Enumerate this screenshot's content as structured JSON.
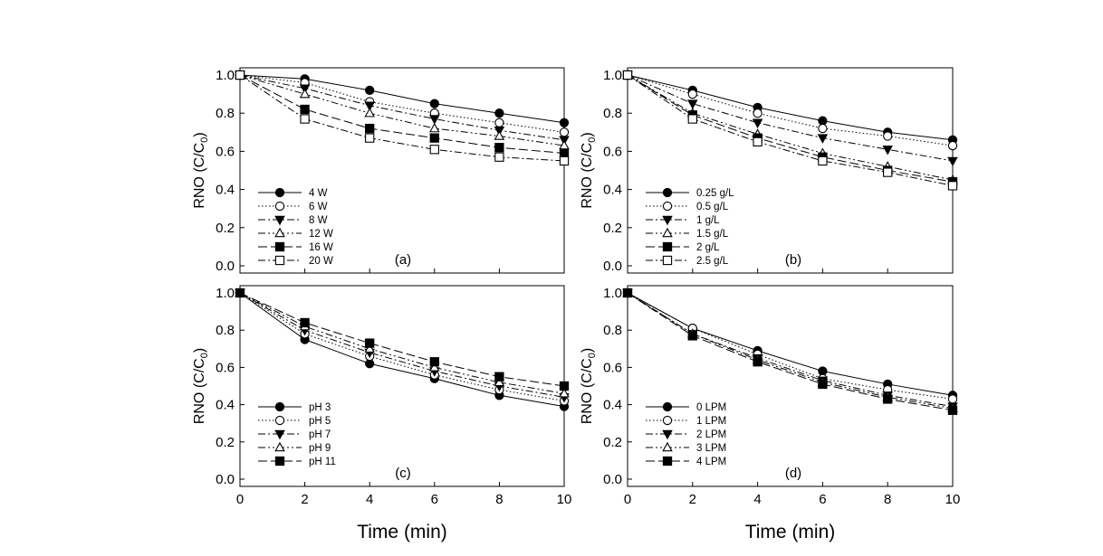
{
  "figure": {
    "xlabel": "Time (min)",
    "ylabel": "RNO (C/C",
    "ylabel_sub": "0",
    "ylabel_close": ")"
  },
  "chart_data": [
    {
      "id": "a",
      "type": "line",
      "panel_label": "(a)",
      "xlim": [
        0,
        10
      ],
      "ylim": [
        0,
        1.0
      ],
      "x": [
        0,
        2,
        4,
        6,
        8,
        10
      ],
      "xticks": [
        0,
        2,
        4,
        6,
        8,
        10
      ],
      "yticks": [
        0.0,
        0.2,
        0.4,
        0.6,
        0.8,
        1.0
      ],
      "legend_position": "lower-left",
      "series": [
        {
          "name": "4 W",
          "marker": "circle-filled",
          "dash": "solid",
          "values": [
            1.0,
            0.98,
            0.92,
            0.85,
            0.8,
            0.75
          ]
        },
        {
          "name": "6 W",
          "marker": "circle-open",
          "dash": "dotted",
          "values": [
            1.0,
            0.96,
            0.86,
            0.8,
            0.75,
            0.7
          ]
        },
        {
          "name": "8 W",
          "marker": "triangle-down-filled",
          "dash": "dashdot",
          "values": [
            1.0,
            0.93,
            0.84,
            0.77,
            0.71,
            0.66
          ]
        },
        {
          "name": "12 W",
          "marker": "triangle-up-open",
          "dash": "dashdotdot",
          "values": [
            1.0,
            0.9,
            0.8,
            0.72,
            0.68,
            0.63
          ]
        },
        {
          "name": "16 W",
          "marker": "square-filled",
          "dash": "longdash",
          "values": [
            1.0,
            0.82,
            0.72,
            0.67,
            0.62,
            0.59
          ]
        },
        {
          "name": "20 W",
          "marker": "square-open",
          "dash": "dashdot",
          "values": [
            1.0,
            0.77,
            0.67,
            0.61,
            0.57,
            0.55
          ]
        }
      ]
    },
    {
      "id": "b",
      "type": "line",
      "panel_label": "(b)",
      "xlim": [
        0,
        10
      ],
      "ylim": [
        0,
        1.0
      ],
      "x": [
        0,
        2,
        4,
        6,
        8,
        10
      ],
      "xticks": [
        0,
        2,
        4,
        6,
        8,
        10
      ],
      "yticks": [
        0.0,
        0.2,
        0.4,
        0.6,
        0.8,
        1.0
      ],
      "legend_position": "lower-left",
      "series": [
        {
          "name": "0.25 g/L",
          "marker": "circle-filled",
          "dash": "solid",
          "values": [
            1.0,
            0.92,
            0.83,
            0.76,
            0.7,
            0.66
          ]
        },
        {
          "name": "0.5 g/L",
          "marker": "circle-open",
          "dash": "dotted",
          "values": [
            1.0,
            0.9,
            0.8,
            0.72,
            0.68,
            0.63
          ]
        },
        {
          "name": "1 g/L",
          "marker": "triangle-down-filled",
          "dash": "dashdot",
          "values": [
            1.0,
            0.85,
            0.75,
            0.67,
            0.61,
            0.55
          ]
        },
        {
          "name": "1.5 g/L",
          "marker": "triangle-up-open",
          "dash": "dashdotdot",
          "values": [
            1.0,
            0.8,
            0.69,
            0.59,
            0.52,
            0.45
          ]
        },
        {
          "name": "2 g/L",
          "marker": "square-filled",
          "dash": "longdash",
          "values": [
            1.0,
            0.79,
            0.67,
            0.57,
            0.5,
            0.44
          ]
        },
        {
          "name": "2.5 g/L",
          "marker": "square-open",
          "dash": "dashdot",
          "values": [
            1.0,
            0.77,
            0.65,
            0.55,
            0.49,
            0.42
          ]
        }
      ]
    },
    {
      "id": "c",
      "type": "line",
      "panel_label": "(c)",
      "xlim": [
        0,
        10
      ],
      "ylim": [
        0,
        1.0
      ],
      "x": [
        0,
        2,
        4,
        6,
        8,
        10
      ],
      "xticks": [
        0,
        2,
        4,
        6,
        8,
        10
      ],
      "yticks": [
        0.0,
        0.2,
        0.4,
        0.6,
        0.8,
        1.0
      ],
      "legend_position": "lower-left",
      "series": [
        {
          "name": "pH 3",
          "marker": "circle-filled",
          "dash": "solid",
          "values": [
            1.0,
            0.75,
            0.62,
            0.54,
            0.45,
            0.39
          ]
        },
        {
          "name": "pH 5",
          "marker": "circle-open",
          "dash": "dotted",
          "values": [
            1.0,
            0.78,
            0.66,
            0.56,
            0.48,
            0.42
          ]
        },
        {
          "name": "pH 7",
          "marker": "triangle-down-filled",
          "dash": "dashdot",
          "values": [
            1.0,
            0.8,
            0.68,
            0.58,
            0.5,
            0.44
          ]
        },
        {
          "name": "pH 9",
          "marker": "triangle-up-open",
          "dash": "dashdotdot",
          "values": [
            1.0,
            0.82,
            0.7,
            0.6,
            0.52,
            0.46
          ]
        },
        {
          "name": "pH 11",
          "marker": "square-filled",
          "dash": "longdash",
          "values": [
            1.0,
            0.84,
            0.73,
            0.63,
            0.55,
            0.5
          ]
        }
      ]
    },
    {
      "id": "d",
      "type": "line",
      "panel_label": "(d)",
      "xlim": [
        0,
        10
      ],
      "ylim": [
        0,
        1.0
      ],
      "x": [
        0,
        2,
        4,
        6,
        8,
        10
      ],
      "xticks": [
        0,
        2,
        4,
        6,
        8,
        10
      ],
      "yticks": [
        0.0,
        0.2,
        0.4,
        0.6,
        0.8,
        1.0
      ],
      "legend_position": "lower-left",
      "series": [
        {
          "name": "0 LPM",
          "marker": "circle-filled",
          "dash": "solid",
          "values": [
            1.0,
            0.81,
            0.69,
            0.58,
            0.51,
            0.45
          ]
        },
        {
          "name": "1 LPM",
          "marker": "circle-open",
          "dash": "dotted",
          "values": [
            1.0,
            0.81,
            0.67,
            0.54,
            0.48,
            0.43
          ]
        },
        {
          "name": "2 LPM",
          "marker": "triangle-down-filled",
          "dash": "dashdot",
          "values": [
            1.0,
            0.78,
            0.65,
            0.53,
            0.45,
            0.39
          ]
        },
        {
          "name": "3 LPM",
          "marker": "triangle-up-open",
          "dash": "dashdotdot",
          "values": [
            1.0,
            0.78,
            0.64,
            0.52,
            0.44,
            0.38
          ]
        },
        {
          "name": "4 LPM",
          "marker": "square-filled",
          "dash": "longdash",
          "values": [
            1.0,
            0.77,
            0.63,
            0.51,
            0.43,
            0.37
          ]
        }
      ]
    }
  ]
}
